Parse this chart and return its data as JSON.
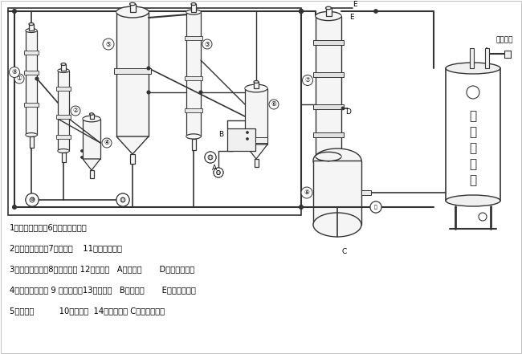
{
  "background_color": "#ffffff",
  "dark": "#333333",
  "gray": "#999999",
  "lgray": "#cccccc",
  "legend_lines": [
    "1、第一效蒸发器6、第三效分离器",
    "2、第二效蒸发器7、冷凝器    11、强制循环泵",
    "3、第三效蒸发器8、冷凝水罐 12、进料泵   A、进料口       D、冷却水出口",
    "4、第一效分离器 9 生蒸汽进口13、出料泵   B、出料口       E、冷却水进口",
    "5、结晶器          10、循环泵  14、冷凝水泵 C、冷凝水出口"
  ],
  "auto_drain_chars": [
    "自",
    "动",
    "排",
    "水",
    "器"
  ],
  "vacuum_text": "真空接口"
}
